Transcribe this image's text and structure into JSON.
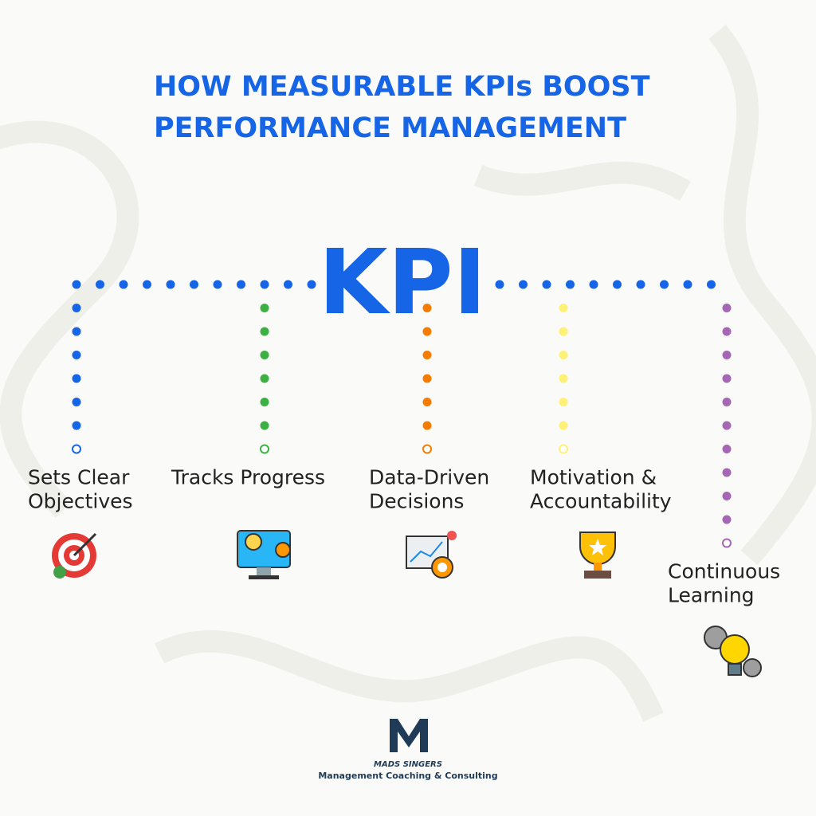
{
  "header": {
    "title_lines": [
      "HOW MEASURABLE KPIs BOOST",
      "PERFORMANCE MANAGEMENT"
    ],
    "center_label": "KPI",
    "center_color": "#1565e6"
  },
  "branches": [
    {
      "label_lines": [
        "Sets Clear",
        "Objectives"
      ],
      "color": "#1565e6"
    },
    {
      "label_lines": [
        "Tracks Progress"
      ],
      "color": "#3cb043"
    },
    {
      "label_lines": [
        "Data-Driven",
        "Decisions"
      ],
      "color": "#f57c00"
    },
    {
      "label_lines": [
        "Motivation &",
        "Accountability"
      ],
      "color": "#fff176"
    },
    {
      "label_lines": [
        "Continuous",
        "Learning"
      ],
      "color": "#a566b3"
    }
  ],
  "footer": {
    "brand": "MADS SINGERS",
    "tagline": "Management Coaching & Consulting"
  }
}
